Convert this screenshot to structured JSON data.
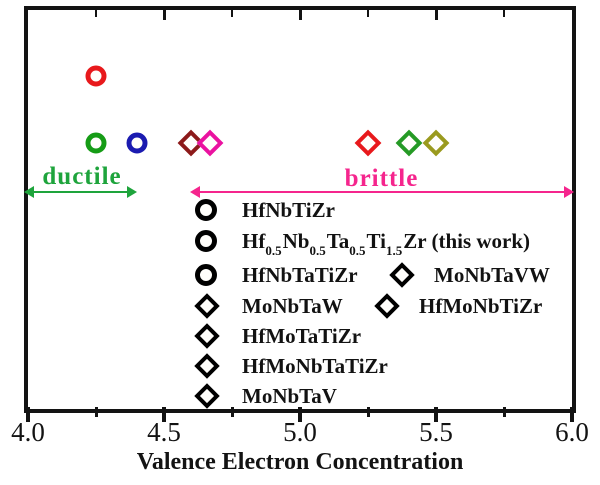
{
  "colors": {
    "frame": "#131313",
    "ductile_text_arrow": "#1ea43c",
    "brittle_text_arrow": "#f5258d",
    "green_hatch": "#72a989",
    "gray_hatch": "#9c9c9c",
    "pink_hatch": "#ea8ab1",
    "marker_green": "#169c16",
    "marker_red": "#e8191c",
    "marker_blue": "#1b1bb0",
    "marker_olive": "#9a9a1e",
    "marker_darkred": "#8c1a1a",
    "marker_magenta": "#ea12a0",
    "marker_forestgreen": "#259a25",
    "marker_orange": "#f5921e"
  },
  "annotations": {
    "ductile": {
      "label": "ductile"
    },
    "brittle": {
      "label": "brittle"
    }
  },
  "legend": {
    "col1": [
      {
        "label": "HfNbTiZr"
      },
      {
        "parts": {
          "e1": "Hf",
          "s1": "0.5",
          "e2": "Nb",
          "s2": "0.5",
          "e3": "Ta",
          "s3": "0.5",
          "e4": "Ti",
          "s4": "1.5",
          "e5": "Zr",
          "suffix": " (this work)"
        }
      },
      {
        "label": "HfNbTaTiZr"
      },
      {
        "label": "MoNbTaW"
      },
      {
        "label": "HfMoTaTiZr"
      },
      {
        "label": "HfMoNbTaTiZr"
      },
      {
        "label": "MoNbTaV"
      }
    ],
    "col2": [
      {
        "label": "MoNbTaVW"
      },
      {
        "label": "HfMoNbTiZr"
      }
    ]
  },
  "chart_data": {
    "type": "scatter",
    "title": "",
    "xlabel": "Valence Electron Concentration",
    "ylabel": "",
    "xlim": [
      4.0,
      6.0
    ],
    "x_tick_labels": [
      "4.0",
      "4.5",
      "5.0",
      "5.5",
      "6.0"
    ],
    "x_tick_values": [
      4.0,
      4.5,
      5.0,
      5.5,
      6.0
    ],
    "x_minor_ticks": [
      4.25,
      4.75,
      5.25,
      5.75
    ],
    "grid": false,
    "y_axis": "none (marker rows have no numeric scale)",
    "regions": [
      {
        "label": "ductile",
        "from": 4.0,
        "to": 4.4,
        "hatch": "/",
        "color": "#72a989"
      },
      {
        "label": "",
        "from": 4.4,
        "to": 4.6,
        "hatch": "x",
        "color": "#9c9c9c"
      },
      {
        "label": "brittle",
        "from": 4.6,
        "to": 6.0,
        "hatch": "\\",
        "color": "#ea8ab1"
      }
    ],
    "points": [
      {
        "id": "hf05nb05ta05ti15zr",
        "name": "Hf0.5Nb0.5Ta0.5Ti1.5Zr (this work)",
        "vec": 4.25,
        "row": "upper",
        "shape": "circle",
        "color": "#e8191c",
        "visible": true
      },
      {
        "id": "hfnbtizr",
        "name": "HfNbTiZr",
        "vec": 4.25,
        "row": "main",
        "shape": "circle",
        "color": "#169c16",
        "visible": true
      },
      {
        "id": "hfnbtatizr",
        "name": "HfNbTaTiZr",
        "vec": 4.4,
        "row": "main",
        "shape": "circle",
        "color": "#1b1bb0",
        "visible": true
      },
      {
        "id": "hfmotatizr",
        "name": "HfMoTaTiZr",
        "vec": 4.6,
        "row": "main",
        "shape": "diamond",
        "color": "#8c1a1a",
        "visible": true
      },
      {
        "id": "hfmonbtatizr",
        "name": "HfMoNbTaTiZr",
        "vec": 4.67,
        "row": "main",
        "shape": "diamond",
        "color": "#ea12a0",
        "visible": true
      },
      {
        "id": "monbtav",
        "name": "MoNbTaV",
        "vec": 5.25,
        "row": "main",
        "shape": "diamond",
        "color": "#e8191c",
        "visible": true
      },
      {
        "id": "monbtavw",
        "name": "MoNbTaVW",
        "vec": 5.4,
        "row": "main",
        "shape": "diamond",
        "color": "#259a25",
        "visible": true
      },
      {
        "id": "monbtaw",
        "name": "MoNbTaW",
        "vec": 5.5,
        "row": "main",
        "shape": "diamond",
        "color": "#9a9a1e",
        "visible": true
      },
      {
        "id": "hfmonbtizr",
        "name": "HfMoNbTiZr",
        "vec": 4.6,
        "row": "main",
        "shape": "diamond",
        "color": "#f5921e",
        "visible": false
      }
    ]
  }
}
